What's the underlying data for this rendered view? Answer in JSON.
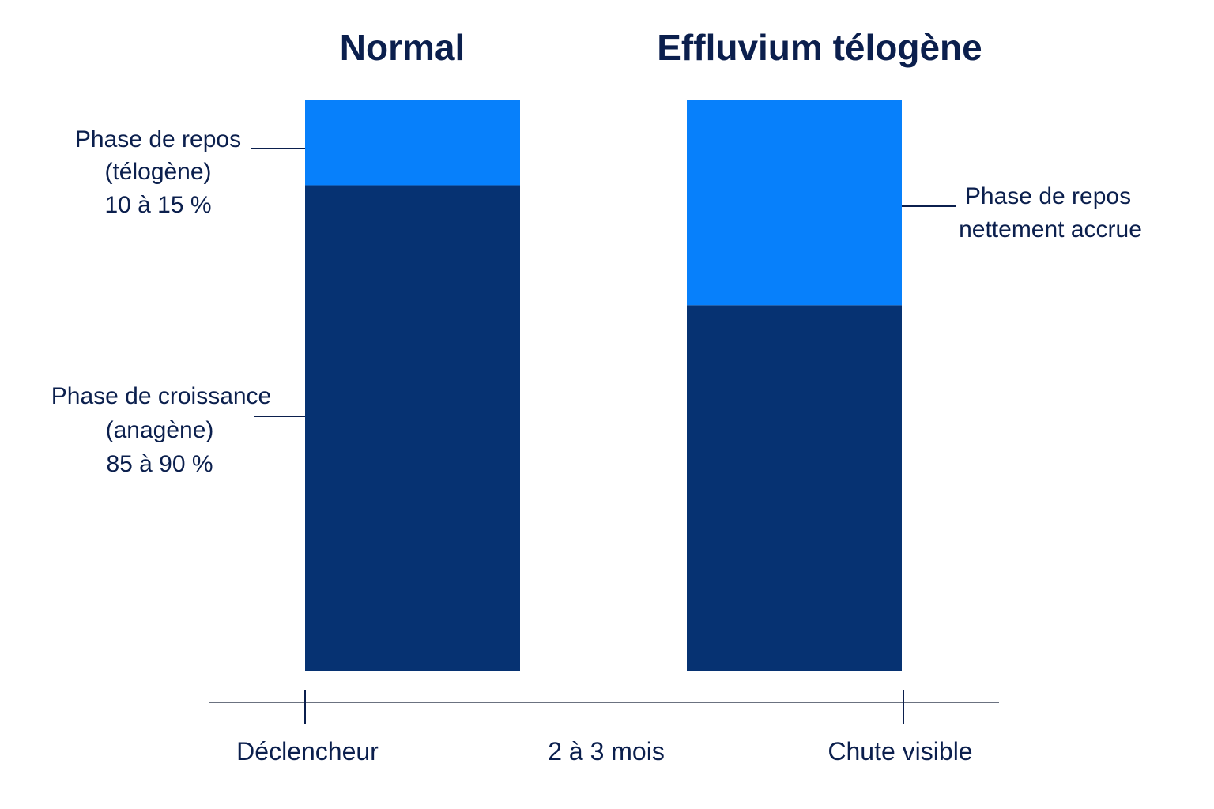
{
  "chart_data": {
    "type": "bar",
    "stacked": true,
    "unit": "%",
    "ylim": [
      0,
      100
    ],
    "grid": false,
    "categories": [
      "Normal",
      "Effluvium télogène"
    ],
    "series": [
      {
        "key": "anagen",
        "values": [
          85,
          64
        ],
        "color": "#063272"
      },
      {
        "key": "telogen",
        "values": [
          15,
          36
        ],
        "color": "#0780fb"
      }
    ],
    "annotations": {
      "normal_telogen": [
        "Phase de repos",
        "(télogène)",
        "10 à 15 %"
      ],
      "normal_anagen": [
        "Phase de croissance",
        "(anagène)",
        "85 à 90 %"
      ],
      "effluvium_telogen": [
        "Phase de repos",
        "nettement accrue"
      ]
    },
    "timeline": {
      "start": "Déclencheur",
      "middle": "2 à 3 mois",
      "end": "Chute visible",
      "color": "#6b7280"
    }
  }
}
